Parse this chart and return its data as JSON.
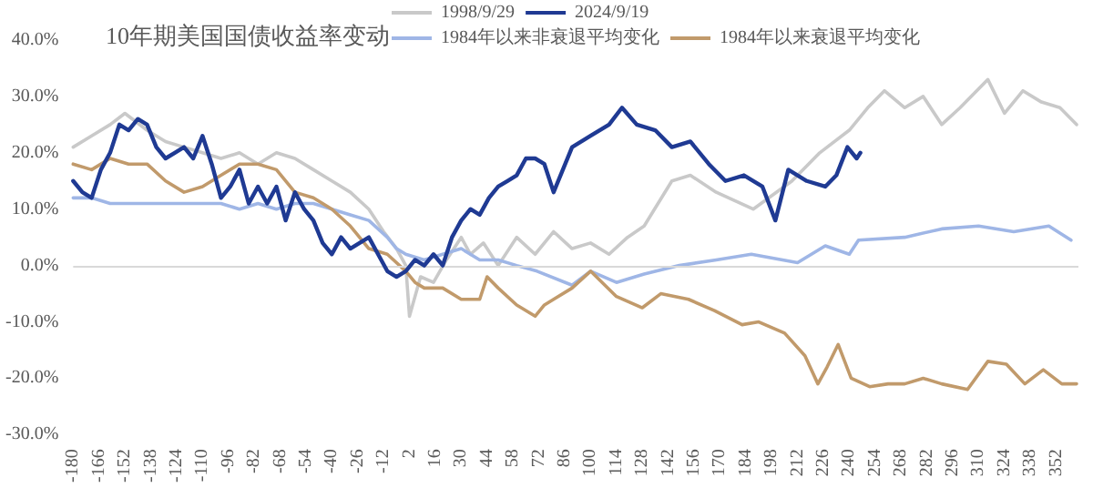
{
  "chart_data": {
    "type": "line",
    "title": "10年期美国国债收益率变动",
    "legend": "top",
    "marker": "none",
    "line_style": "solid",
    "grid": false,
    "xlim": [
      -180,
      364
    ],
    "xticks": [
      -180,
      -166,
      -152,
      -138,
      -124,
      -110,
      -96,
      -82,
      -68,
      -54,
      -40,
      -26,
      -12,
      2,
      16,
      30,
      44,
      58,
      72,
      86,
      100,
      114,
      128,
      142,
      156,
      170,
      184,
      198,
      212,
      226,
      240,
      254,
      268,
      282,
      296,
      310,
      324,
      338,
      352
    ],
    "ylim": [
      -30,
      40
    ],
    "yticks": [
      {
        "value": -30,
        "label": "-30.0%"
      },
      {
        "value": -20,
        "label": "-20.0%"
      },
      {
        "value": -10,
        "label": "-10.0%"
      },
      {
        "value": 0,
        "label": "0.0%"
      },
      {
        "value": 10,
        "label": "10.0%"
      },
      {
        "value": 20,
        "label": "20.0%"
      },
      {
        "value": 30,
        "label": "30.0%"
      },
      {
        "value": 40,
        "label": "40.0%"
      }
    ],
    "ref_lines": [
      {
        "axis": "y",
        "value": 0,
        "label": null,
        "color": "#d9d9d9"
      }
    ],
    "series": [
      {
        "name": "1998/9/29",
        "color": "#c9c9c9",
        "x": [
          -180,
          -170,
          -160,
          -152,
          -140,
          -130,
          -120,
          -110,
          -100,
          -90,
          -80,
          -70,
          -60,
          -50,
          -40,
          -30,
          -20,
          -12,
          -5,
          0,
          2,
          8,
          15,
          22,
          30,
          35,
          42,
          50,
          60,
          70,
          80,
          90,
          100,
          110,
          120,
          129,
          144,
          154,
          168,
          188,
          209,
          224,
          240,
          250,
          259,
          270,
          280,
          290,
          300,
          315,
          324,
          334,
          344,
          354,
          363
        ],
        "values": [
          21,
          23,
          25,
          27,
          24,
          22,
          21,
          20,
          19,
          20,
          18,
          20,
          19,
          17,
          15,
          13,
          10,
          6,
          3,
          0,
          -9,
          -2,
          -3,
          1,
          5,
          2,
          4,
          0,
          5,
          2,
          6,
          3,
          4,
          2,
          5,
          7,
          15,
          16,
          13,
          10,
          15,
          20,
          24,
          28,
          31,
          28,
          30,
          25,
          28,
          33,
          27,
          31,
          29,
          28,
          25
        ]
      },
      {
        "name": "2024/9/19",
        "color": "#1f3a93",
        "x": [
          -180,
          -175,
          -170,
          -165,
          -160,
          -155,
          -150,
          -145,
          -140,
          -135,
          -130,
          -125,
          -120,
          -115,
          -110,
          -105,
          -100,
          -95,
          -90,
          -85,
          -80,
          -75,
          -70,
          -65,
          -60,
          -55,
          -50,
          -45,
          -40,
          -35,
          -30,
          -25,
          -20,
          -15,
          -10,
          -5,
          0,
          5,
          10,
          15,
          20,
          25,
          30,
          35,
          40,
          45,
          50,
          55,
          60,
          65,
          70,
          75,
          80,
          90,
          100,
          110,
          117,
          125,
          135,
          144,
          154,
          164,
          173,
          183,
          193,
          200,
          207,
          217,
          227,
          233,
          239,
          244,
          246
        ],
        "values": [
          15,
          13,
          12,
          17,
          20,
          25,
          24,
          26,
          25,
          21,
          19,
          20,
          21,
          19,
          23,
          18,
          12,
          14,
          17,
          11,
          14,
          11,
          14,
          8,
          13,
          10,
          8,
          4,
          2,
          5,
          3,
          4,
          5,
          2,
          -1,
          -2,
          -1,
          1,
          0,
          2,
          0,
          5,
          8,
          10,
          9,
          12,
          14,
          15,
          16,
          19,
          19,
          18,
          13,
          21,
          23,
          25,
          28,
          25,
          24,
          21,
          22,
          18,
          15,
          16,
          14,
          8,
          17,
          15,
          14,
          16,
          21,
          19,
          20
        ]
      },
      {
        "name": "1984年以来非衰退平均变化",
        "color": "#9fb6e6",
        "x": [
          -180,
          -170,
          -160,
          -150,
          -140,
          -130,
          -120,
          -110,
          -100,
          -90,
          -80,
          -70,
          -60,
          -50,
          -40,
          -30,
          -20,
          -10,
          -5,
          0,
          10,
          20,
          30,
          40,
          50,
          60,
          71,
          90,
          100,
          114,
          129,
          148,
          168,
          187,
          212,
          227,
          240,
          245,
          270,
          290,
          310,
          329,
          348,
          360
        ],
        "values": [
          12,
          12,
          11,
          11,
          11,
          11,
          11,
          11,
          11,
          10,
          11,
          10,
          11,
          11,
          10,
          9,
          8,
          5,
          3,
          2,
          1,
          2,
          3,
          1,
          1,
          0,
          -1,
          -3.5,
          -1,
          -3,
          -1.5,
          0,
          1,
          2,
          0.5,
          3.5,
          2,
          4.5,
          5,
          6.5,
          7,
          6,
          7,
          4.5
        ]
      },
      {
        "name": "1984年以来衰退平均变化",
        "color": "#c19a6b",
        "x": [
          -180,
          -170,
          -160,
          -150,
          -140,
          -130,
          -120,
          -110,
          -100,
          -90,
          -80,
          -70,
          -60,
          -50,
          -40,
          -30,
          -20,
          -10,
          0,
          5,
          10,
          20,
          30,
          40,
          44,
          50,
          60,
          70,
          75,
          80,
          90,
          100,
          114,
          128,
          138,
          153,
          167,
          182,
          191,
          205,
          216,
          223,
          228,
          234,
          241,
          251,
          261,
          270,
          280,
          290,
          304,
          315,
          325,
          335,
          345,
          355,
          363
        ],
        "values": [
          18,
          17,
          19,
          18,
          18,
          15,
          13,
          14,
          16,
          18,
          18,
          17,
          13,
          12,
          10,
          7,
          3,
          2,
          -1,
          -3,
          -4,
          -4,
          -6,
          -6,
          -2,
          -4,
          -7,
          -9,
          -7,
          -6,
          -4,
          -1,
          -5.5,
          -7.5,
          -5,
          -6,
          -8,
          -10.5,
          -10,
          -12,
          -16,
          -21,
          -18,
          -14,
          -20,
          -21.5,
          -21,
          -21,
          -20,
          -21,
          -22,
          -17,
          -17.5,
          -21,
          -18.5,
          -21,
          -21
        ]
      }
    ]
  }
}
